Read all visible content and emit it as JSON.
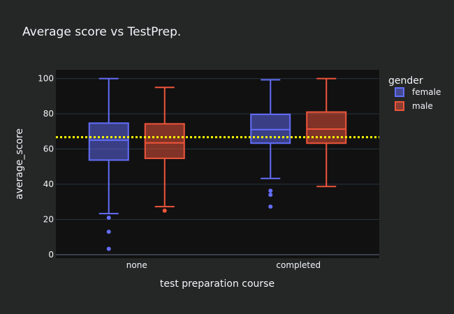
{
  "chart_data": {
    "type": "box",
    "title": "Average score vs TestPrep.",
    "xlabel": "test preparation course",
    "ylabel": "average_score",
    "categories": [
      "none",
      "completed"
    ],
    "ylim": [
      -2,
      105
    ],
    "yticks": [
      0,
      20,
      40,
      60,
      80,
      100
    ],
    "grid": true,
    "reference_line": {
      "y": 66.7,
      "color": "#ffff00",
      "style": "dotted"
    },
    "legend": {
      "title": "gender",
      "placement": "top-right"
    },
    "colors": {
      "female": "#636efa",
      "male": "#ef553b"
    },
    "series": [
      {
        "name": "female",
        "boxes": [
          {
            "category": "none",
            "min": 23.3,
            "q1": 53.7,
            "median": 65.0,
            "q3": 74.7,
            "max": 100,
            "outliers": [
              21.0,
              13.0,
              3.3
            ]
          },
          {
            "category": "completed",
            "min": 43.3,
            "q1": 63.3,
            "median": 71.0,
            "q3": 79.7,
            "max": 99.3,
            "outliers": [
              36.3,
              34.0,
              27.3
            ]
          }
        ]
      },
      {
        "name": "male",
        "boxes": [
          {
            "category": "none",
            "min": 27.3,
            "q1": 54.7,
            "median": 63.5,
            "q3": 74.3,
            "max": 95.0,
            "outliers": [
              25.0
            ]
          },
          {
            "category": "completed",
            "min": 38.7,
            "q1": 63.3,
            "median": 71.3,
            "q3": 81.0,
            "max": 100,
            "outliers": []
          }
        ]
      }
    ]
  }
}
